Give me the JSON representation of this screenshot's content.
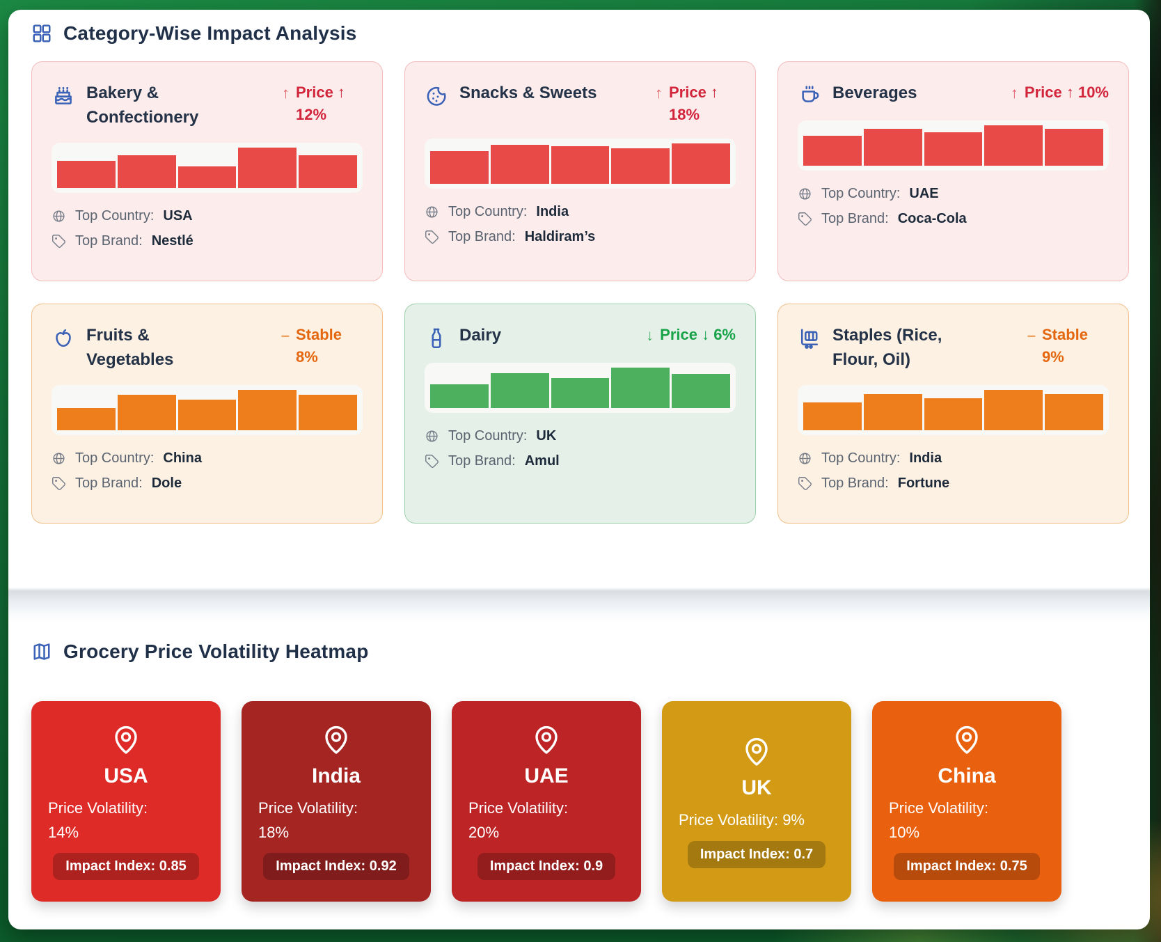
{
  "section_impact": {
    "title": "Category-Wise Impact Analysis",
    "labels": {
      "top_country": "Top Country:",
      "top_brand": "Top Brand:"
    },
    "categories": [
      {
        "title": "Bakery & Confectionery",
        "tone": "up",
        "trend_icon": "↑",
        "trend_label": "Price ↑ 12%",
        "bars": [
          0.67,
          0.8,
          0.53,
          1.0,
          0.81
        ],
        "top_country": "USA",
        "top_brand": "Nestlé"
      },
      {
        "title": "Snacks & Sweets",
        "tone": "up",
        "trend_icon": "↑",
        "trend_label": "Price ↑ 18%",
        "bars": [
          0.8,
          0.97,
          0.93,
          0.87,
          1.0
        ],
        "top_country": "India",
        "top_brand": "Haldiram’s"
      },
      {
        "title": "Beverages",
        "tone": "up",
        "trend_icon": "↑",
        "trend_label": "Price ↑ 10%",
        "bars": [
          0.74,
          0.91,
          0.82,
          1.0,
          0.91
        ],
        "top_country": "UAE",
        "top_brand": "Coca-Cola"
      },
      {
        "title": "Fruits & Vegetables",
        "tone": "stable",
        "trend_icon": "–",
        "trend_label": "Stable 8%",
        "bars": [
          0.55,
          0.88,
          0.76,
          1.0,
          0.87
        ],
        "top_country": "China",
        "top_brand": "Dole"
      },
      {
        "title": "Dairy",
        "tone": "down",
        "trend_icon": "↓",
        "trend_label": "Price ↓ 6%",
        "bars": [
          0.59,
          0.86,
          0.75,
          1.0,
          0.85
        ],
        "top_country": "UK",
        "top_brand": "Amul"
      },
      {
        "title": "Staples (Rice, Flour, Oil)",
        "tone": "stable",
        "trend_icon": "–",
        "trend_label": "Stable 9%",
        "bars": [
          0.69,
          0.89,
          0.78,
          1.0,
          0.89
        ],
        "top_country": "India",
        "top_brand": "Fortune"
      }
    ]
  },
  "palette": {
    "up": {
      "bg": "#fcecec",
      "border": "#f4bcba",
      "bar": "#e84a47",
      "label": "#d2243b",
      "icon": "#e2606a"
    },
    "stable": {
      "bg": "#fdf1e3",
      "border": "#f0c08a",
      "bar": "#ee7e1c",
      "label": "#e4670f",
      "icon": "#efa05c"
    },
    "down": {
      "bg": "#e4f0e8",
      "border": "#9fd0ac",
      "bar": "#4cb05e",
      "label": "#18a349",
      "icon": "#47b069"
    }
  },
  "section_heatmap": {
    "title": "Grocery Price Volatility Heatmap",
    "labels": {
      "volatility": "Price Volatility:",
      "impact": "Impact Index:"
    },
    "countries": [
      {
        "name": "USA",
        "price_volatility": "14%",
        "impact_index": "0.85",
        "color": "#de2b27"
      },
      {
        "name": "India",
        "price_volatility": "18%",
        "impact_index": "0.92",
        "color": "#a52523"
      },
      {
        "name": "UAE",
        "price_volatility": "20%",
        "impact_index": "0.9",
        "color": "#bd2426"
      },
      {
        "name": "UK",
        "price_volatility": "9%",
        "impact_index": "0.7",
        "color": "#d39b15"
      },
      {
        "name": "China",
        "price_volatility": "10%",
        "impact_index": "0.75",
        "color": "#e9600f"
      }
    ]
  }
}
